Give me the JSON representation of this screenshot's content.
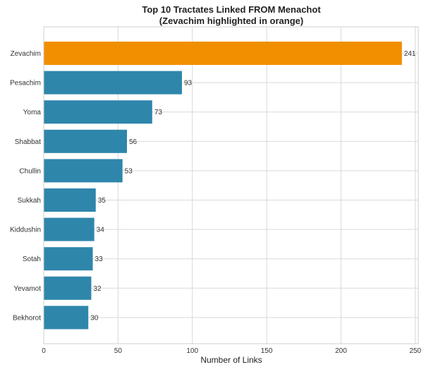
{
  "chart_data": {
    "type": "bar",
    "orientation": "horizontal",
    "title": "Top 10 Tractates Linked FROM Menachot",
    "subtitle": "(Zevachim highlighted in orange)",
    "xlabel": "Number of Links",
    "ylabel": "",
    "xlim": [
      0,
      252
    ],
    "xticks": [
      0,
      50,
      100,
      150,
      200,
      250
    ],
    "grid": true,
    "categories": [
      "Zevachim",
      "Pesachim",
      "Yoma",
      "Shabbat",
      "Chullin",
      "Sukkah",
      "Kiddushin",
      "Sotah",
      "Yevamot",
      "Bekhorot"
    ],
    "values": [
      241,
      93,
      73,
      56,
      53,
      35,
      34,
      33,
      32,
      30
    ],
    "highlight_category": "Zevachim",
    "colors": {
      "default": "#2e86ab",
      "highlight": "#f18f01"
    }
  }
}
